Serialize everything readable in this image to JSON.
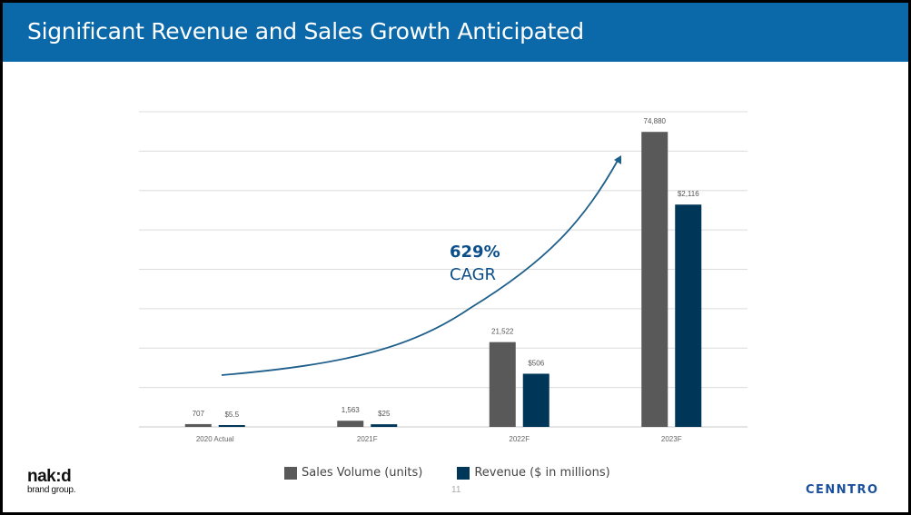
{
  "slide": {
    "title": "Significant Revenue and Sales Growth Anticipated",
    "page_number": "11"
  },
  "annotation": {
    "cagr_value": "629%",
    "cagr_label": "CAGR"
  },
  "logos": {
    "left_big": "nak:d",
    "left_small": "brand group.",
    "right": "CENNTRO"
  },
  "colors": {
    "header": "#0b69aa",
    "sales_volume": "#595959",
    "revenue": "#003658",
    "arrow": "#1f5f8b"
  },
  "chart_data": {
    "type": "bar",
    "title": "",
    "categories": [
      "2020 Actual",
      "2021F",
      "2022F",
      "2023F"
    ],
    "series": [
      {
        "name": "Sales Volume (units)",
        "values": [
          707,
          1563,
          21522,
          74880
        ],
        "labels": [
          "707",
          "1,563",
          "21,522",
          "74,880"
        ],
        "color": "#595959"
      },
      {
        "name": "Revenue ($ in millions)",
        "values": [
          5.5,
          25,
          506,
          2116
        ],
        "labels": [
          "$5.5",
          "$25",
          "$506",
          "$2,116"
        ],
        "color": "#003658"
      }
    ],
    "axis_max": {
      "Sales Volume (units)": 80000,
      "Revenue ($ in millions)": 3000
    },
    "grid": true,
    "legend": "bottom-center",
    "xlabel": "",
    "ylabel": ""
  }
}
